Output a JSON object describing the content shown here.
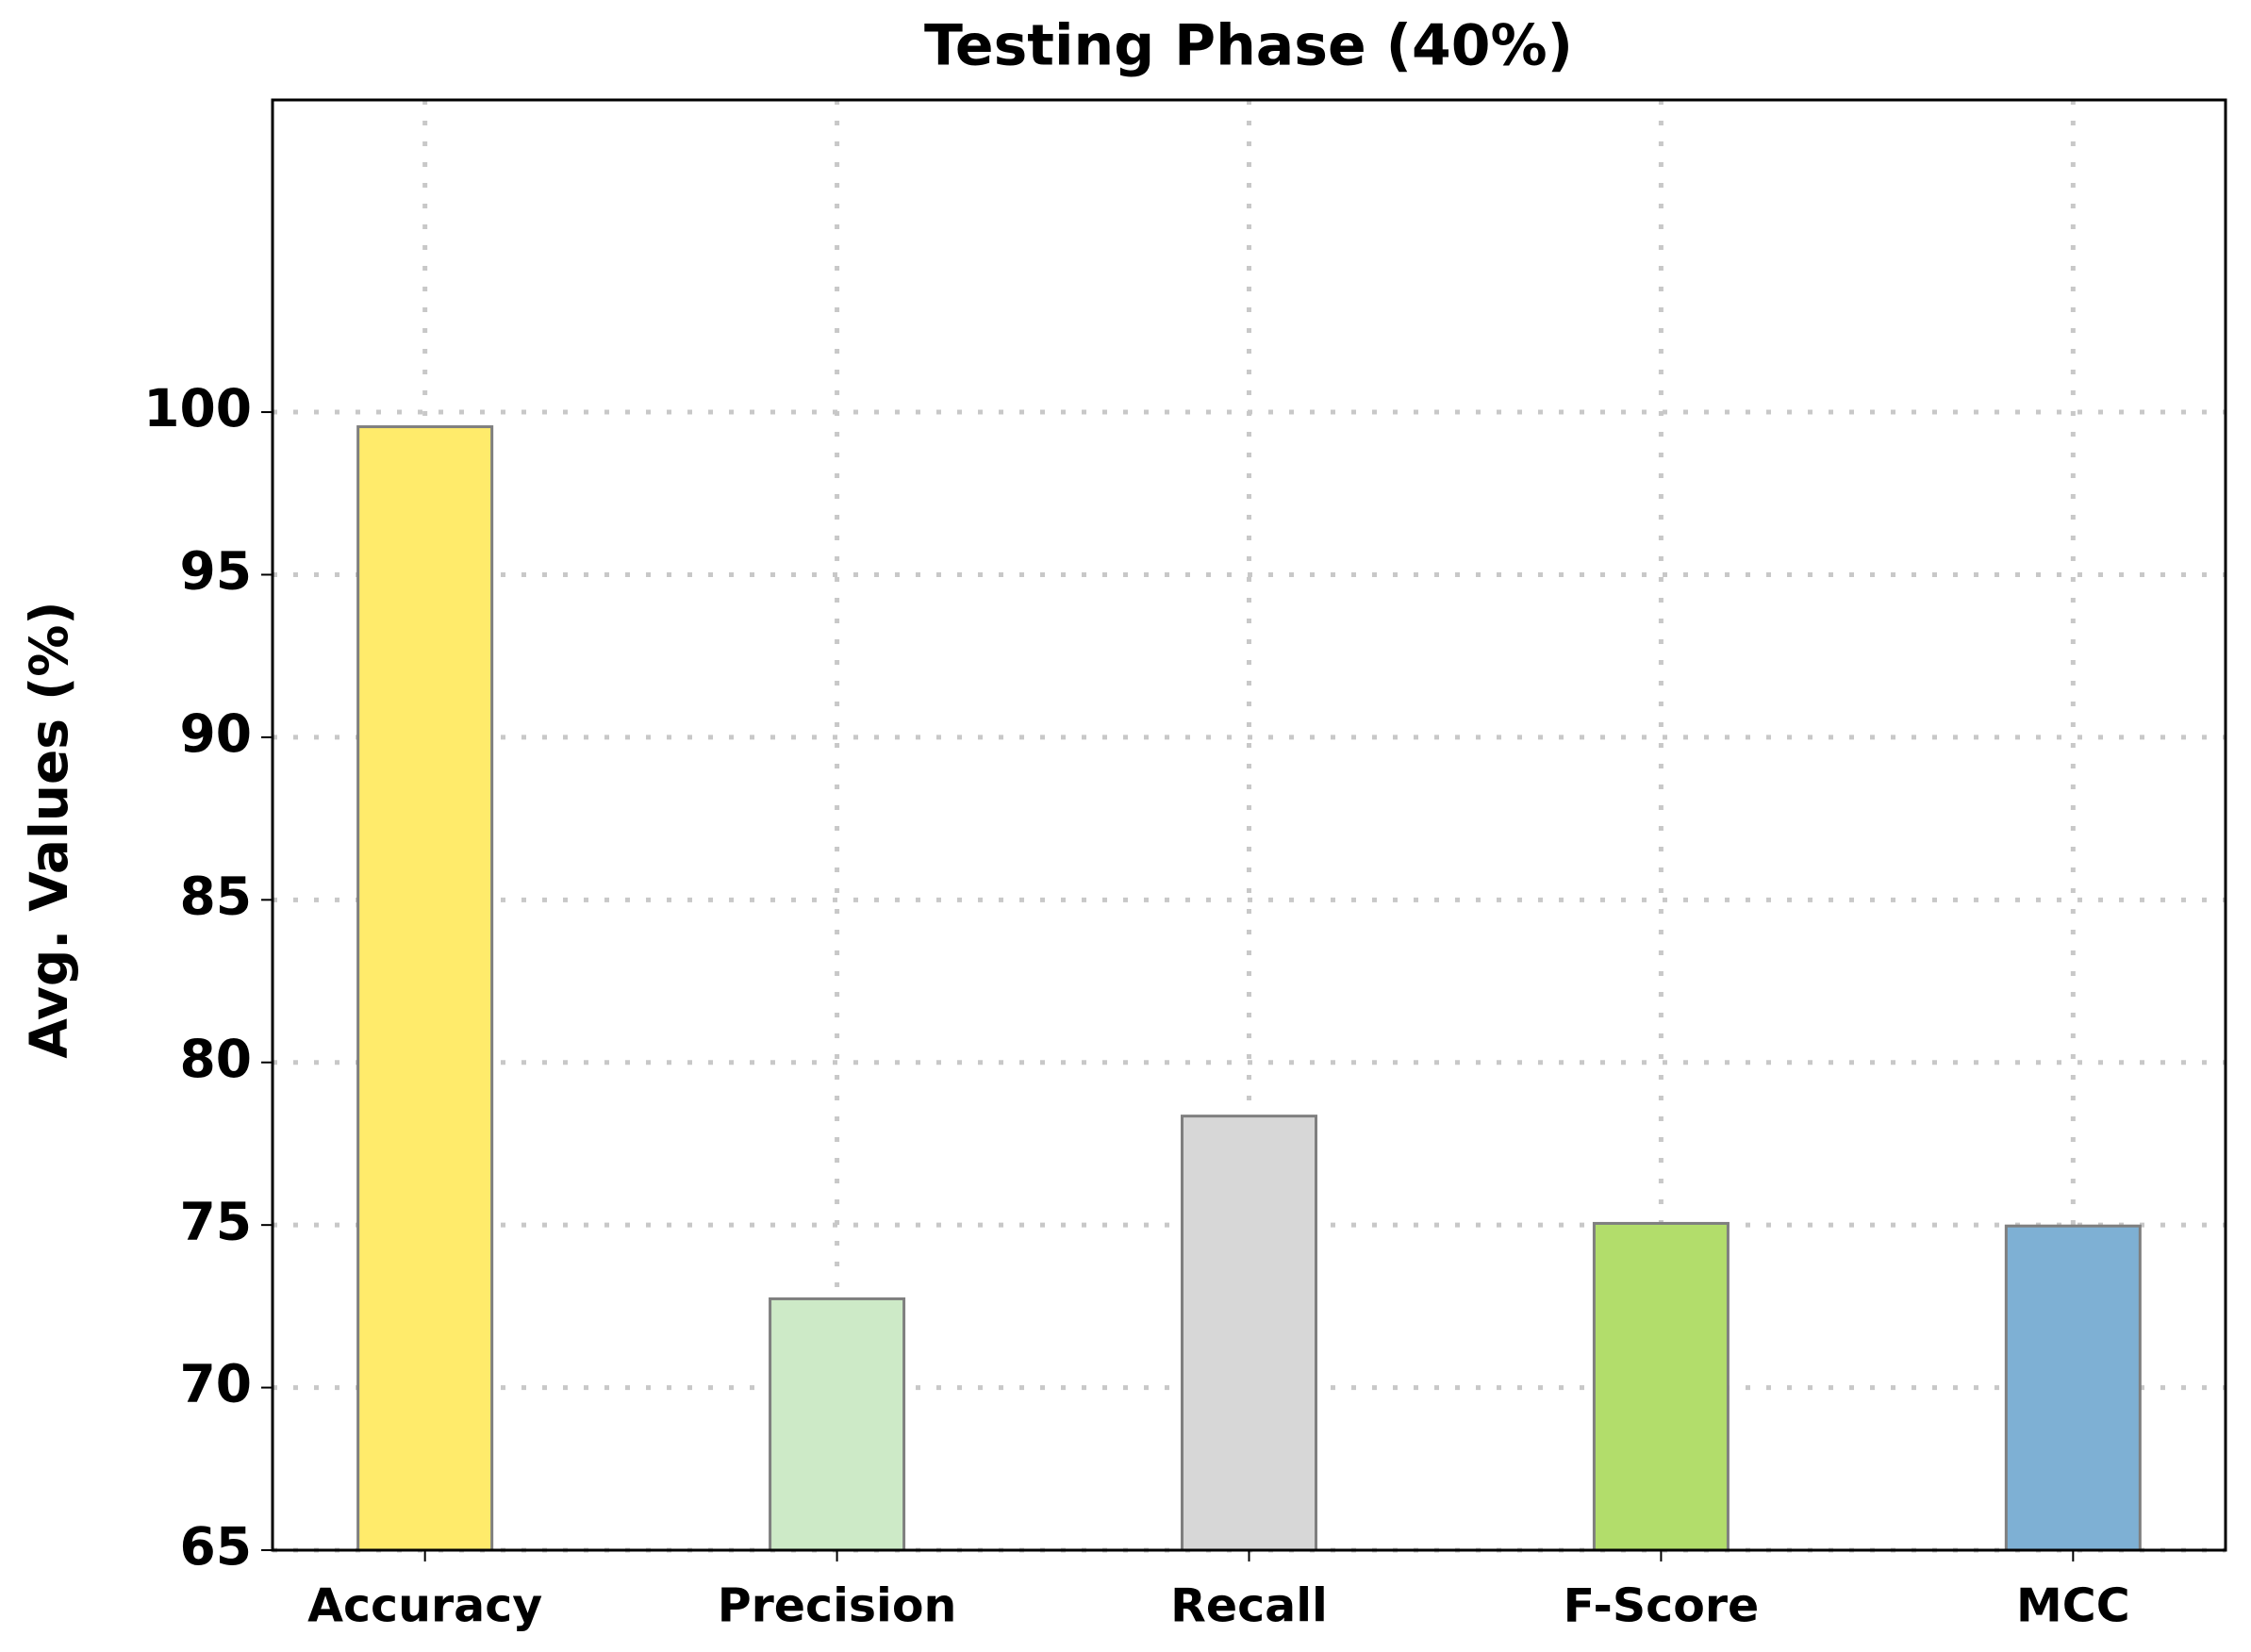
{
  "chart_data": {
    "type": "bar",
    "title": "Testing Phase (40%)",
    "ylabel": "Avg. Values (%)",
    "categories": [
      "Accuracy",
      "Precision",
      "Recall",
      "F-Score",
      "MCC"
    ],
    "values": [
      99.55,
      72.73,
      78.35,
      75.05,
      74.97
    ],
    "colors": [
      "#ffeb6b",
      "#cdeac7",
      "#d7d7d7",
      "#b2dd6b",
      "#7eb0d4"
    ],
    "ylim": [
      65,
      109.6
    ],
    "yticks": [
      65,
      70,
      75,
      80,
      85,
      90,
      95,
      100
    ],
    "grid": true
  }
}
